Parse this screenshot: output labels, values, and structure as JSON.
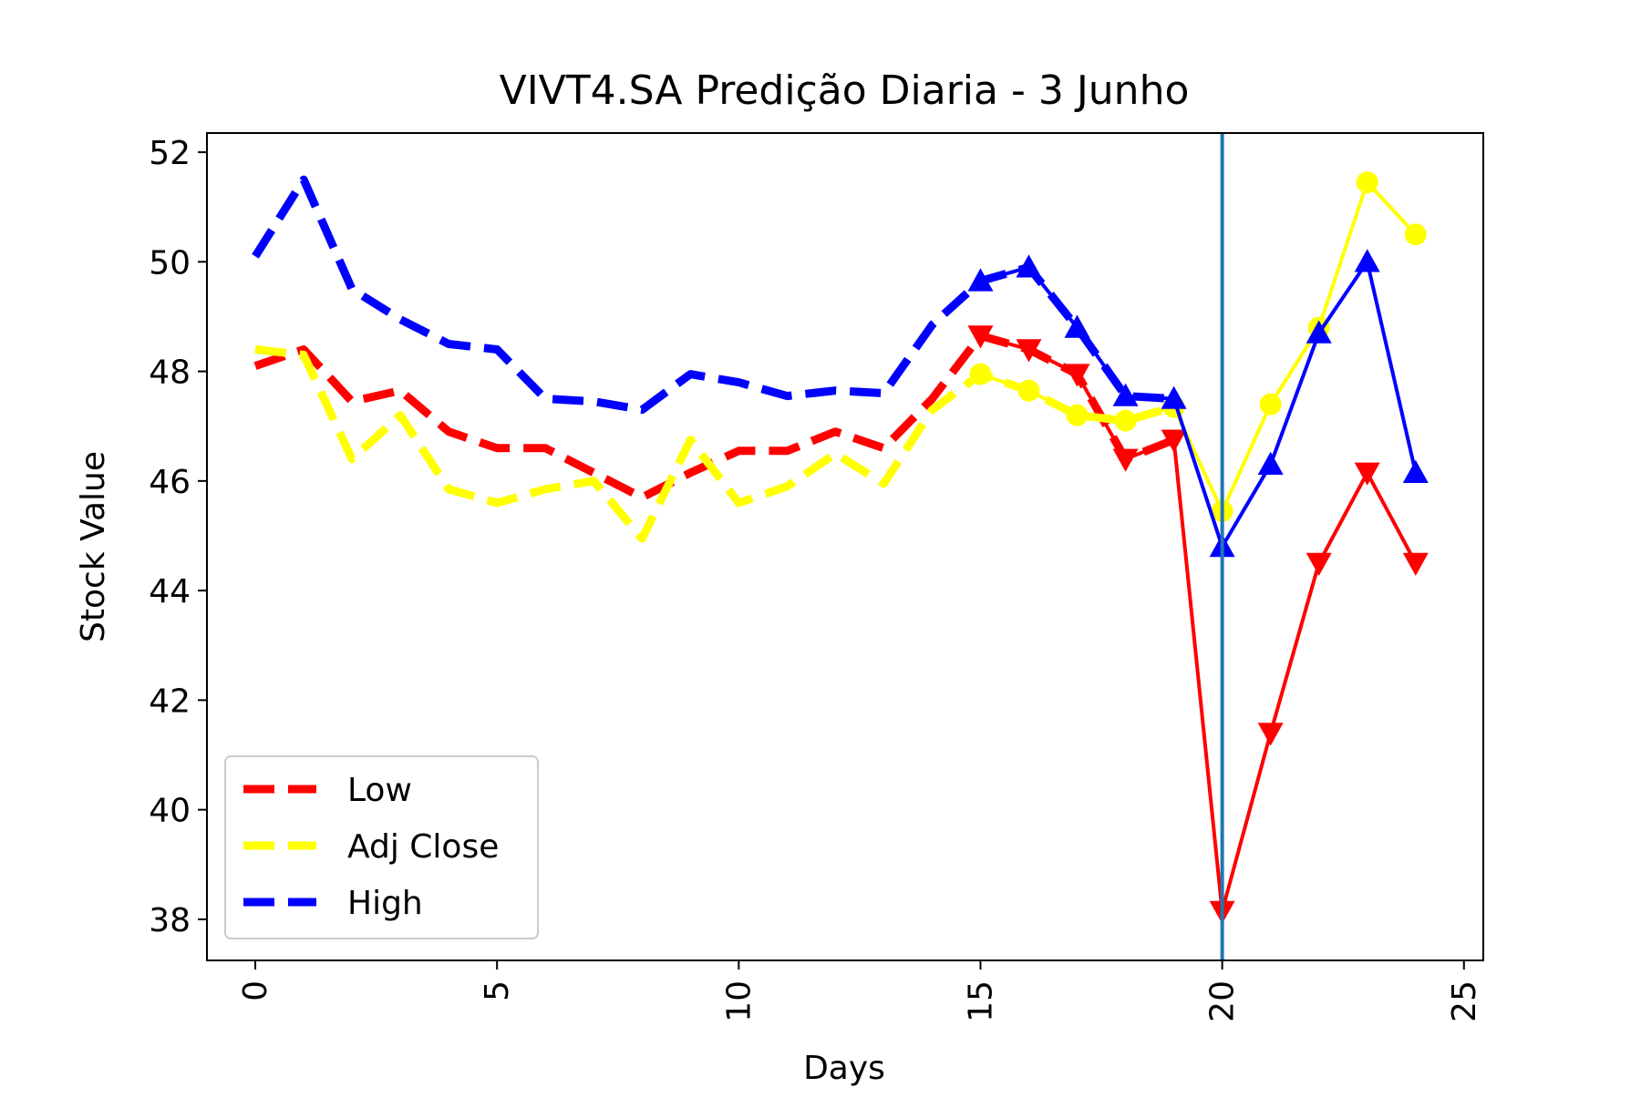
{
  "chart_data": {
    "type": "line",
    "title": "VIVT4.SA Predição Diaria - 3 Junho",
    "xlabel": "Days",
    "ylabel": "Stock Value",
    "xlim": [
      -1,
      25.4
    ],
    "ylim": [
      37.25,
      52.35
    ],
    "xticks": [
      0,
      5,
      10,
      15,
      20,
      25
    ],
    "yticks": [
      38,
      40,
      42,
      44,
      46,
      48,
      50,
      52
    ],
    "grid": false,
    "legend_position": "lower-left",
    "vertical_line": {
      "x": 20,
      "color": "#1f77b4"
    },
    "series": [
      {
        "name": "Low",
        "color": "#ff0000",
        "marker": "triangle-down",
        "historical": {
          "x": [
            0,
            1,
            2,
            3,
            4,
            5,
            6,
            7,
            8,
            9,
            10,
            11,
            12,
            13,
            14,
            15,
            16,
            17,
            18,
            19
          ],
          "y": [
            48.1,
            48.4,
            47.45,
            47.65,
            46.9,
            46.6,
            46.6,
            46.15,
            45.7,
            46.15,
            46.55,
            46.55,
            46.9,
            46.6,
            47.5,
            48.65,
            48.4,
            47.95,
            46.4,
            46.75
          ]
        },
        "predicted": {
          "x": [
            15,
            16,
            17,
            18,
            19,
            20,
            21,
            22,
            23,
            24
          ],
          "y": [
            48.65,
            48.4,
            47.95,
            46.4,
            46.75,
            38.15,
            41.4,
            44.5,
            46.15,
            44.5
          ]
        }
      },
      {
        "name": "Adj Close",
        "color": "#ffff00",
        "marker": "circle",
        "historical": {
          "x": [
            0,
            1,
            2,
            3,
            4,
            5,
            6,
            7,
            8,
            9,
            10,
            11,
            12,
            13,
            14,
            15,
            16,
            17,
            18,
            19
          ],
          "y": [
            48.4,
            48.3,
            46.4,
            47.2,
            45.85,
            45.6,
            45.85,
            46.0,
            44.95,
            46.75,
            45.6,
            45.9,
            46.5,
            45.95,
            47.3,
            47.95,
            47.65,
            47.2,
            47.1,
            47.35
          ]
        },
        "predicted": {
          "x": [
            15,
            16,
            17,
            18,
            19,
            20,
            21,
            22,
            23,
            24
          ],
          "y": [
            47.95,
            47.65,
            47.2,
            47.1,
            47.35,
            45.45,
            47.4,
            48.8,
            51.45,
            50.5
          ]
        }
      },
      {
        "name": "High",
        "color": "#0000ff",
        "marker": "triangle-up",
        "historical": {
          "x": [
            0,
            1,
            2,
            3,
            4,
            5,
            6,
            7,
            8,
            9,
            10,
            11,
            12,
            13,
            14,
            15,
            16,
            17,
            18,
            19
          ],
          "y": [
            50.1,
            51.5,
            49.5,
            48.95,
            48.5,
            48.4,
            47.5,
            47.45,
            47.3,
            47.95,
            47.8,
            47.55,
            47.65,
            47.6,
            48.85,
            49.65,
            49.9,
            48.8,
            47.55,
            47.5
          ]
        },
        "predicted": {
          "x": [
            15,
            16,
            17,
            18,
            19,
            20,
            21,
            22,
            23,
            24
          ],
          "y": [
            49.65,
            49.9,
            48.8,
            47.55,
            47.5,
            44.8,
            46.3,
            48.7,
            50.0,
            46.15
          ]
        }
      }
    ]
  }
}
